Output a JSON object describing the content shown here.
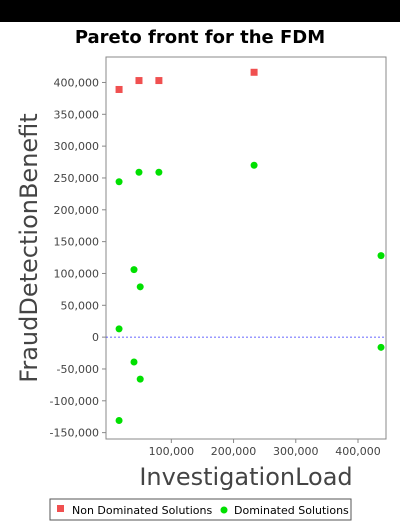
{
  "chart_data": {
    "type": "scatter",
    "title": "Pareto front for the FDM",
    "xlabel": "InvestigationLoad",
    "ylabel": "FraudDetectionBenefit",
    "xlim": [
      -5000,
      445000
    ],
    "ylim": [
      -160000,
      440000
    ],
    "x_ticks": [
      100000,
      200000,
      300000,
      400000
    ],
    "x_tick_labels": [
      "100,000",
      "200,000",
      "300,000",
      "400,000"
    ],
    "y_ticks": [
      400000,
      350000,
      300000,
      250000,
      200000,
      150000,
      100000,
      50000,
      0,
      -50000,
      -100000,
      -150000
    ],
    "y_tick_labels": [
      "400,000",
      "350,000",
      "300,000",
      "250,000",
      "200,000",
      "150,000",
      "100,000",
      "50,000",
      "0",
      "-50,000",
      "-100,000",
      "-150,000"
    ],
    "zero_line": true,
    "grid": false,
    "legend_position": "bottom",
    "series": [
      {
        "name": "Non Dominated Solutions",
        "marker": "square",
        "color": "#f05050",
        "x": [
          16000,
          48000,
          80000,
          233000
        ],
        "y": [
          389000,
          403000,
          403000,
          416000
        ]
      },
      {
        "name": "Dominated Solutions",
        "marker": "circle",
        "color": "#00e000",
        "x": [
          16000,
          48000,
          80000,
          233000,
          40000,
          50000,
          16000,
          40000,
          50000,
          16000,
          437000,
          437000
        ],
        "y": [
          244000,
          259000,
          259000,
          270000,
          106000,
          79000,
          13000,
          -39000,
          -66000,
          -131000,
          128000,
          -16000
        ]
      }
    ]
  }
}
